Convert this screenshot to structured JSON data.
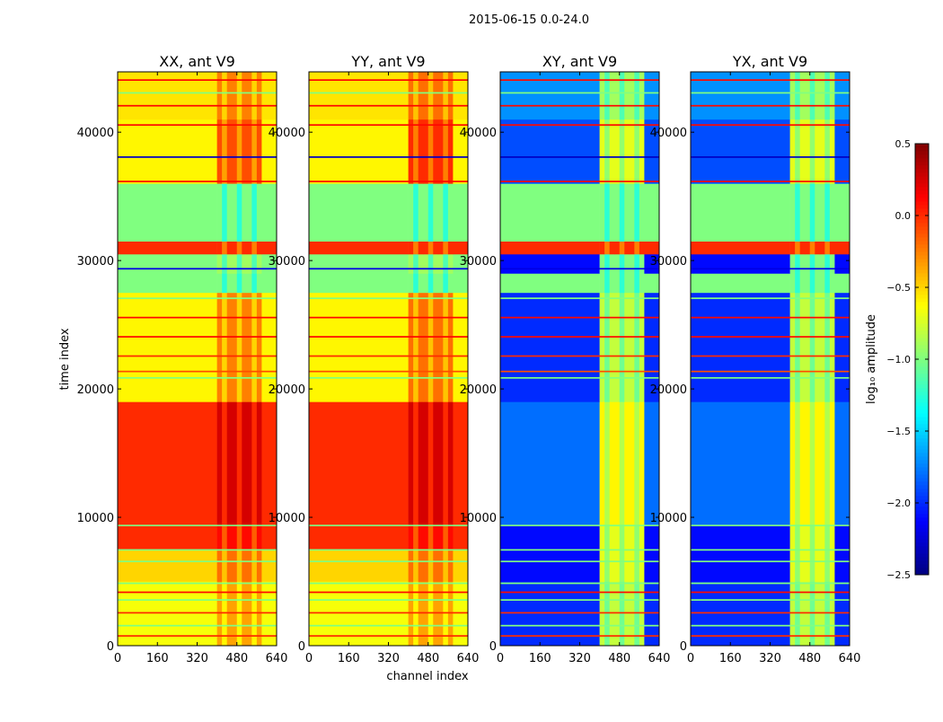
{
  "chart_data": {
    "type": "heatmap",
    "title": "2015-06-15 0.0-24.0",
    "xlabel": "channel index",
    "ylabel": "time index",
    "xlim": [
      0,
      640
    ],
    "ylim": [
      0,
      44700
    ],
    "xticks": [
      "0",
      "160",
      "320",
      "480",
      "640"
    ],
    "xtick_values": [
      0,
      160,
      320,
      480,
      640
    ],
    "yticks": [
      "0",
      "10000",
      "20000",
      "30000",
      "40000"
    ],
    "ytick_values": [
      0,
      10000,
      20000,
      30000,
      40000
    ],
    "colorbar": {
      "label": "log₁₀ amplitude",
      "range": [
        -2.5,
        0.5
      ],
      "colormap": "jet",
      "ticks": [
        "0.5",
        "0.0",
        "−0.5",
        "−1.0",
        "−1.5",
        "−2.0",
        "−2.5"
      ],
      "tick_values": [
        0.5,
        0.0,
        -0.5,
        -1.0,
        -1.5,
        -2.0,
        -2.5
      ]
    },
    "channel_regions": [
      [
        0,
        400
      ],
      [
        400,
        580
      ],
      [
        580,
        640
      ]
    ],
    "panels": [
      {
        "title": "XX, ant V9",
        "bands": [
          [
            0,
            5000,
            -0.65,
            -0.35
          ],
          [
            5000,
            7500,
            -0.5,
            -0.2
          ],
          [
            7500,
            9400,
            0.0,
            0.1
          ],
          [
            9400,
            19000,
            0.0,
            0.25
          ],
          [
            19000,
            27500,
            -0.6,
            -0.25
          ],
          [
            27500,
            29000,
            -1.0,
            -1.0
          ],
          [
            29000,
            30500,
            -1.0,
            -0.9
          ],
          [
            30500,
            31500,
            0.0,
            0.0
          ],
          [
            31500,
            36000,
            -1.0,
            -1.0
          ],
          [
            36000,
            41000,
            -0.6,
            -0.1
          ],
          [
            41000,
            44700,
            -0.55,
            -0.25
          ]
        ]
      },
      {
        "title": "YY, ant V9",
        "bands": [
          [
            0,
            5000,
            -0.65,
            -0.35
          ],
          [
            5000,
            7500,
            -0.5,
            -0.2
          ],
          [
            7500,
            9400,
            0.0,
            0.1
          ],
          [
            9400,
            19000,
            0.0,
            0.25
          ],
          [
            19000,
            27500,
            -0.6,
            -0.2
          ],
          [
            27500,
            29000,
            -1.0,
            -1.0
          ],
          [
            29000,
            30500,
            -1.0,
            -0.9
          ],
          [
            30500,
            31500,
            0.0,
            0.0
          ],
          [
            31500,
            36000,
            -1.0,
            -1.0
          ],
          [
            36000,
            41000,
            -0.6,
            0.0
          ],
          [
            41000,
            44700,
            -0.55,
            -0.2
          ]
        ]
      },
      {
        "title": "XY, ant V9",
        "bands": [
          [
            0,
            5000,
            -2.0,
            -0.8
          ],
          [
            5000,
            9400,
            -2.1,
            -0.7
          ],
          [
            9400,
            19000,
            -1.8,
            -0.6
          ],
          [
            19000,
            27500,
            -2.0,
            -0.8
          ],
          [
            27500,
            29000,
            -1.0,
            -1.0
          ],
          [
            29000,
            30500,
            -2.1,
            -1.0
          ],
          [
            30500,
            31500,
            0.0,
            0.0
          ],
          [
            31500,
            36000,
            -1.0,
            -1.0
          ],
          [
            36000,
            41000,
            -1.9,
            -0.7
          ],
          [
            41000,
            44700,
            -1.7,
            -0.9
          ]
        ]
      },
      {
        "title": "YX, ant V9",
        "bands": [
          [
            0,
            5000,
            -2.0,
            -0.8
          ],
          [
            5000,
            9400,
            -2.1,
            -0.7
          ],
          [
            9400,
            19000,
            -1.8,
            -0.6
          ],
          [
            19000,
            27500,
            -2.0,
            -0.8
          ],
          [
            27500,
            29000,
            -1.0,
            -1.0
          ],
          [
            29000,
            30500,
            -2.1,
            -1.0
          ],
          [
            30500,
            31500,
            0.0,
            0.0
          ],
          [
            31500,
            36000,
            -1.0,
            -1.0
          ],
          [
            36000,
            41000,
            -1.9,
            -0.7
          ],
          [
            41000,
            44700,
            -1.7,
            -0.9
          ]
        ]
      }
    ],
    "flag_lines": [
      [
        700,
        0.0
      ],
      [
        1500,
        -1.0
      ],
      [
        2500,
        0.0
      ],
      [
        3500,
        -1.0
      ],
      [
        4100,
        0.1
      ],
      [
        4800,
        -1.0
      ],
      [
        6500,
        -1.0
      ],
      [
        7400,
        -1.0
      ],
      [
        9300,
        -1.0
      ],
      [
        20800,
        -1.0
      ],
      [
        21300,
        -0.1
      ],
      [
        22500,
        0.0
      ],
      [
        24000,
        0.1
      ],
      [
        25500,
        0.1
      ],
      [
        27000,
        -1.0
      ],
      [
        29300,
        -2.2
      ],
      [
        36100,
        0.1
      ],
      [
        38000,
        -2.3
      ],
      [
        40500,
        0.1
      ],
      [
        42000,
        0.1
      ],
      [
        43000,
        -1.0
      ],
      [
        44000,
        0.1
      ]
    ]
  }
}
